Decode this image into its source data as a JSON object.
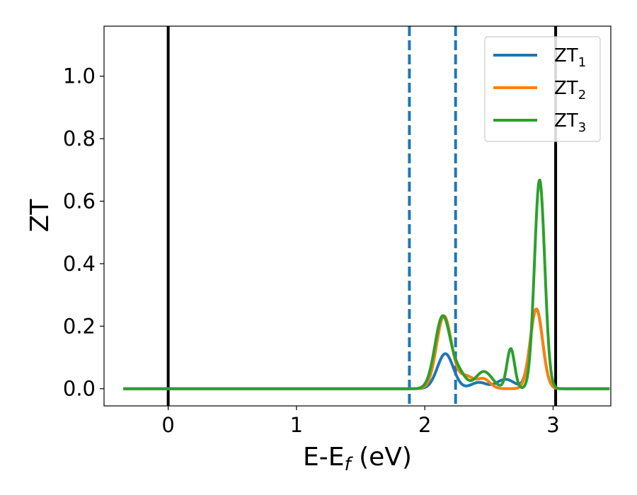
{
  "chart_data": {
    "type": "line",
    "title": "",
    "xlabel": "E-E",
    "xlabel_sub": "f",
    "xlabel_unit": " (eV)",
    "ylabel": "ZT",
    "xlim": [
      -0.5,
      3.45
    ],
    "ylim": [
      -0.055,
      1.16
    ],
    "xticks": [
      0,
      1,
      2,
      3
    ],
    "xtick_labels": [
      "0",
      "1",
      "2",
      "3"
    ],
    "yticks": [
      0.0,
      0.2,
      0.4,
      0.6,
      0.8,
      1.0
    ],
    "ytick_labels": [
      "0.0",
      "0.2",
      "0.4",
      "0.6",
      "0.8",
      "1.0"
    ],
    "grid": false,
    "legend_position": "top-right",
    "colors": {
      "zt1": "#1f77b4",
      "zt2": "#ff7f0e",
      "zt3": "#2ca02c",
      "black": "#000000"
    },
    "vlines": [
      {
        "x": 0.0,
        "style": "solid",
        "color": "#000000"
      },
      {
        "x": 3.02,
        "style": "solid",
        "color": "#000000"
      },
      {
        "x": 1.88,
        "style": "dashed",
        "color": "#1f77b4"
      },
      {
        "x": 2.24,
        "style": "dashed",
        "color": "#1f77b4"
      }
    ],
    "series": [
      {
        "name": "ZT",
        "sub": "1",
        "color": "#1f77b4",
        "peaks": [
          {
            "center": 2.16,
            "height": 0.112,
            "width": 0.062
          },
          {
            "center": 2.42,
            "height": 0.02,
            "width": 0.06
          },
          {
            "center": 2.63,
            "height": 0.03,
            "width": 0.07
          },
          {
            "center": 2.87,
            "height": 0.255,
            "width": 0.048
          }
        ]
      },
      {
        "name": "ZT",
        "sub": "2",
        "color": "#ff7f0e",
        "peaks": [
          {
            "center": 2.15,
            "height": 0.232,
            "width": 0.058
          },
          {
            "center": 2.32,
            "height": 0.04,
            "width": 0.06
          },
          {
            "center": 2.46,
            "height": 0.03,
            "width": 0.05
          },
          {
            "center": 2.87,
            "height": 0.255,
            "width": 0.048
          }
        ]
      },
      {
        "name": "ZT",
        "sub": "3",
        "color": "#2ca02c",
        "peaks": [
          {
            "center": 2.14,
            "height": 0.232,
            "width": 0.06
          },
          {
            "center": 2.27,
            "height": 0.045,
            "width": 0.05
          },
          {
            "center": 2.46,
            "height": 0.055,
            "width": 0.065
          },
          {
            "center": 2.67,
            "height": 0.128,
            "width": 0.03
          },
          {
            "center": 2.895,
            "height": 0.668,
            "width": 0.04
          }
        ]
      }
    ]
  }
}
